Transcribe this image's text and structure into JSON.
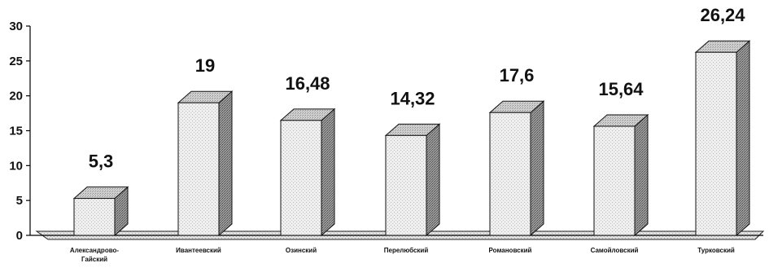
{
  "chart_data": {
    "type": "bar",
    "categories": [
      "Александрово-\nГайский",
      "Ивантеевский",
      "Озинский",
      "Перелюбский",
      "Романовский",
      "Самойловский",
      "Турковский"
    ],
    "values": [
      5.3,
      19,
      16.48,
      14.32,
      17.6,
      15.64,
      26.24
    ],
    "data_labels": [
      "5,3",
      "19",
      "16,48",
      "14,32",
      "17,6",
      "15,64",
      "26,24"
    ],
    "yticks": [
      0,
      5,
      10,
      15,
      20,
      25,
      30
    ],
    "ylim": [
      0,
      30
    ],
    "grid": false,
    "legend": "none",
    "style": "3d-column",
    "colors": {
      "bar_front": "#ebebeb",
      "bar_top": "#bdbdbd",
      "bar_side": "#8a8a8a",
      "floor": "#d6d6d6",
      "axis": "#000000"
    }
  }
}
